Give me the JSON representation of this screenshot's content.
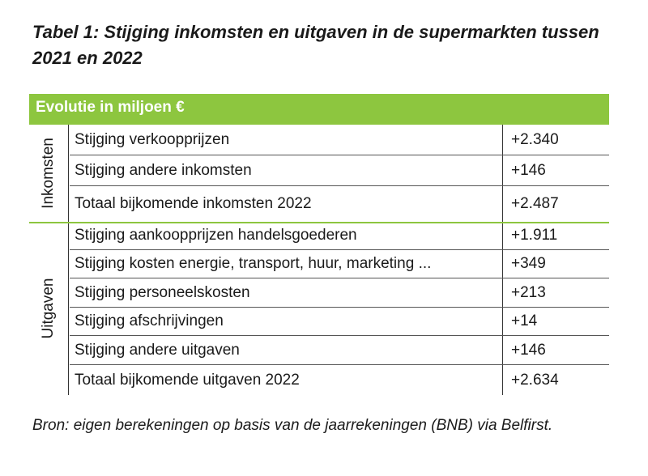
{
  "title": "Tabel 1: Stijging inkomsten en uitgaven in de supermarkten tussen 2021 en 2022",
  "header": "Evolutie in miljoen €",
  "groups": [
    {
      "label": "Inkomsten",
      "rows": [
        {
          "label": "Stijging verkoopprijzen",
          "value": "+2.340"
        },
        {
          "label": "Stijging andere inkomsten",
          "value": "+146"
        },
        {
          "label": "Totaal bijkomende inkomsten 2022",
          "value": "+2.487"
        }
      ]
    },
    {
      "label": "Uitgaven",
      "rows": [
        {
          "label": "Stijging aankoopprijzen handelsgoederen",
          "value": "+1.911"
        },
        {
          "label": "Stijging kosten energie, transport, huur, marketing ...",
          "value": "+349"
        },
        {
          "label": "Stijging personeelskosten",
          "value": "+213"
        },
        {
          "label": "Stijging afschrijvingen",
          "value": "+14"
        },
        {
          "label": "Stijging andere uitgaven",
          "value": "+146"
        },
        {
          "label": "Totaal bijkomende uitgaven 2022",
          "value": "+2.634"
        }
      ]
    }
  ],
  "source": "Bron: eigen berekeningen op basis van de jaarrekeningen (BNB) via Belfirst.",
  "colors": {
    "accent": "#8dc63f"
  }
}
